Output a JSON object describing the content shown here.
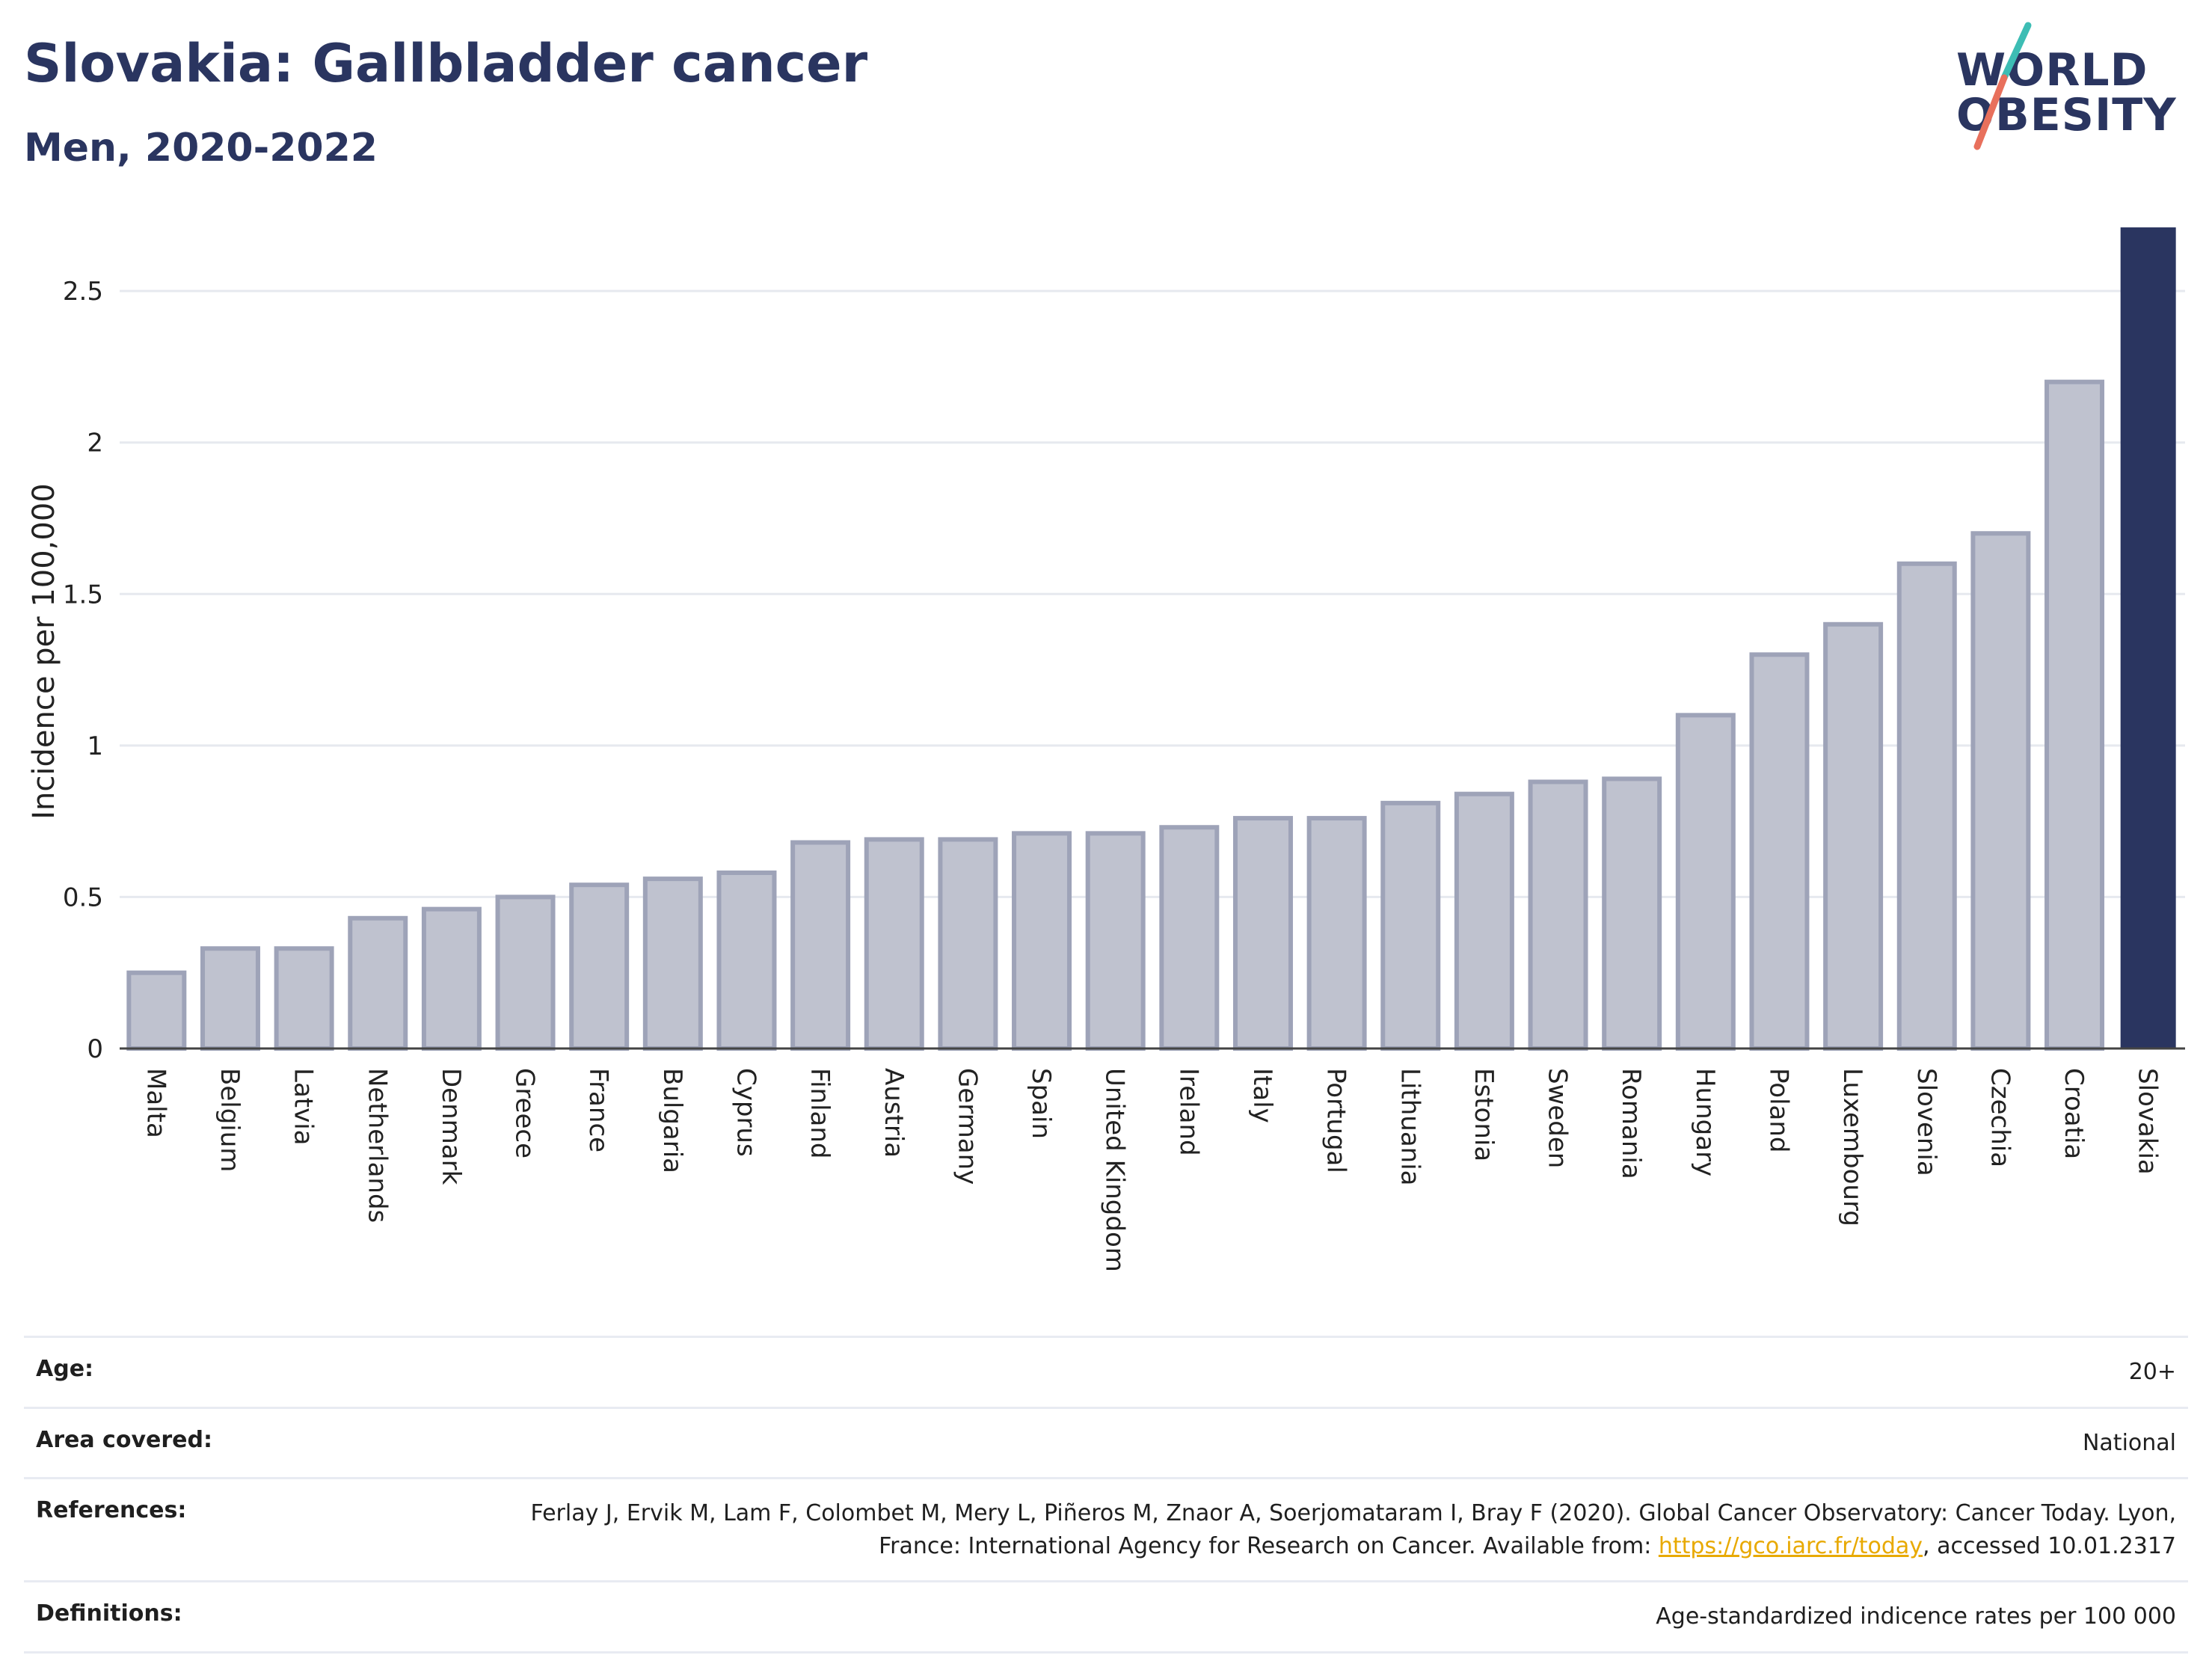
{
  "header": {
    "title": "Slovakia: Gallbladder cancer",
    "subtitle": "Men, 2020-2022"
  },
  "logo": {
    "line1": "WORLD",
    "line2": "OBESITY"
  },
  "colors": {
    "title": "#2a3560",
    "highlight_bar": "#2a3560",
    "other_bar_fill": "#bfc2cf",
    "other_bar_stroke": "#9ea3b8",
    "gridline": "#e6e9ef",
    "link": "#e8a900",
    "logo_teal": "#3dbdb4",
    "logo_coral": "#e8705c"
  },
  "chart_data": {
    "type": "bar",
    "ylabel": "Incidence per 100,000",
    "xlabel": "",
    "ylim": [
      0,
      2.72
    ],
    "yticks": [
      0,
      0.5,
      1,
      1.5,
      2,
      2.5
    ],
    "ytick_labels": [
      "0",
      "0.5",
      "1",
      "1.5",
      "2",
      "2.5"
    ],
    "grid": true,
    "highlight": "Slovakia",
    "categories": [
      "Malta",
      "Belgium",
      "Latvia",
      "Netherlands",
      "Denmark",
      "Greece",
      "France",
      "Bulgaria",
      "Cyprus",
      "Finland",
      "Austria",
      "Germany",
      "Spain",
      "United Kingdom",
      "Ireland",
      "Italy",
      "Portugal",
      "Lithuania",
      "Estonia",
      "Sweden",
      "Romania",
      "Hungary",
      "Poland",
      "Luxembourg",
      "Slovenia",
      "Czechia",
      "Croatia",
      "Slovakia"
    ],
    "values": [
      0.25,
      0.33,
      0.33,
      0.43,
      0.46,
      0.5,
      0.54,
      0.56,
      0.58,
      0.68,
      0.69,
      0.69,
      0.71,
      0.71,
      0.73,
      0.76,
      0.76,
      0.81,
      0.84,
      0.88,
      0.89,
      1.1,
      1.3,
      1.4,
      1.6,
      1.7,
      2.2,
      2.71
    ]
  },
  "info": {
    "age": {
      "label": "Age:",
      "value": "20+"
    },
    "area": {
      "label": "Area covered:",
      "value": "National"
    },
    "references": {
      "label": "References:",
      "text_before": "Ferlay J, Ervik M, Lam F, Colombet M, Mery L, Piñeros M, Znaor A, Soerjomataram I, Bray F (2020). Global Cancer Observatory: Cancer Today. Lyon, France: International Agency for Research on Cancer. Available from: ",
      "link_text": "https://gco.iarc.fr/today",
      "text_after": ", accessed 10.01.2317"
    },
    "definitions": {
      "label": "Definitions:",
      "value": "Age-standardized indicence rates per 100 000"
    }
  }
}
